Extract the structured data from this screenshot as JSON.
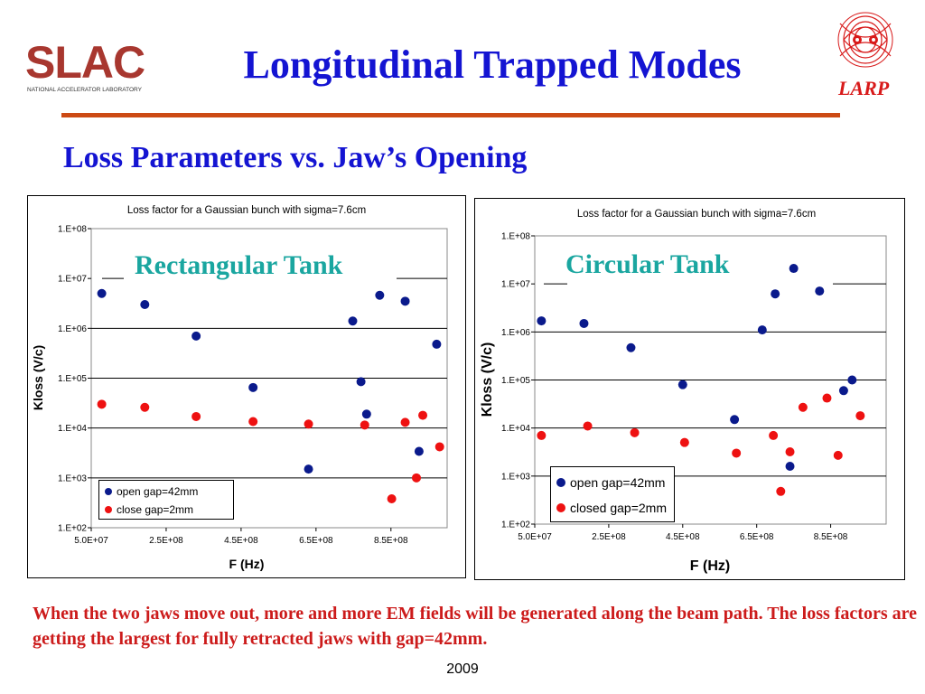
{
  "header": {
    "logo_text": "SLAC",
    "logo_caption": "NATIONAL ACCELERATOR LABORATORY",
    "title": "Longitudinal Trapped Modes",
    "larp_label": "LARP"
  },
  "subtitle": "Loss Parameters vs. Jaw’s Opening",
  "colors": {
    "title_blue": "#1414d2",
    "rule_orange": "#cc4a14",
    "label_teal": "#1aa6a0",
    "footer_red": "#cc1b1b",
    "series_open": "#0a1a8c",
    "series_closed": "#ee1111",
    "logo_red": "#a8372f"
  },
  "chart_data": [
    {
      "type": "scatter",
      "panel_label": "Rectangular Tank",
      "title": "Loss factor for a Gaussian bunch with sigma=7.6cm",
      "xlabel": "F (Hz)",
      "ylabel": "Kloss (V/c)",
      "y_scale": "log",
      "ylim": [
        100,
        100000000
      ],
      "xlim": [
        50000000,
        1000000000
      ],
      "xticks": [
        {
          "value": 50000000,
          "label": "5.0E+07"
        },
        {
          "value": 250000000,
          "label": "2.5E+08"
        },
        {
          "value": 450000000,
          "label": "4.5E+08"
        },
        {
          "value": 650000000,
          "label": "6.5E+08"
        },
        {
          "value": 850000000,
          "label": "8.5E+08"
        }
      ],
      "yticks": [
        {
          "value": 100,
          "label": "1.E+02"
        },
        {
          "value": 1000,
          "label": "1.E+03"
        },
        {
          "value": 10000,
          "label": "1.E+04"
        },
        {
          "value": 100000,
          "label": "1.E+05"
        },
        {
          "value": 1000000,
          "label": "1.E+06"
        },
        {
          "value": 10000000,
          "label": "1.E+07"
        },
        {
          "value": 100000000,
          "label": "1.E+08"
        }
      ],
      "grid": true,
      "legend_position": "bottom-left",
      "series": [
        {
          "name": "open gap=42mm",
          "color": "#0a1a8c",
          "points": [
            [
              78000000,
              5000000
            ],
            [
              193000000,
              3000000
            ],
            [
              330000000,
              700000
            ],
            [
              482000000,
              65000
            ],
            [
              630000000,
              1500
            ],
            [
              748000000,
              1400000
            ],
            [
              770000000,
              85000
            ],
            [
              785000000,
              19000
            ],
            [
              820000000,
              4600000
            ],
            [
              888000000,
              3500000
            ],
            [
              925000000,
              3400
            ],
            [
              972000000,
              480000
            ]
          ]
        },
        {
          "name": "close gap=2mm",
          "color": "#ee1111",
          "points": [
            [
              78000000,
              30000
            ],
            [
              193000000,
              26000
            ],
            [
              330000000,
              17000
            ],
            [
              482000000,
              13500
            ],
            [
              630000000,
              12000
            ],
            [
              780000000,
              11500
            ],
            [
              852000000,
              380
            ],
            [
              888000000,
              13000
            ],
            [
              918000000,
              1000
            ],
            [
              935000000,
              18000
            ],
            [
              980000000,
              4200
            ]
          ]
        }
      ]
    },
    {
      "type": "scatter",
      "panel_label": "Circular Tank",
      "title": "Loss factor for a Gaussian bunch with sigma=7.6cm",
      "xlabel": "F (Hz)",
      "ylabel": "Kloss (V/c)",
      "y_scale": "log",
      "ylim": [
        100,
        100000000
      ],
      "xlim": [
        50000000,
        1000000000
      ],
      "xticks": [
        {
          "value": 50000000,
          "label": "5.0E+07"
        },
        {
          "value": 250000000,
          "label": "2.5E+08"
        },
        {
          "value": 450000000,
          "label": "4.5E+08"
        },
        {
          "value": 650000000,
          "label": "6.5E+08"
        },
        {
          "value": 850000000,
          "label": "8.5E+08"
        }
      ],
      "yticks": [
        {
          "value": 100,
          "label": "1.E+02"
        },
        {
          "value": 1000,
          "label": "1.E+03"
        },
        {
          "value": 10000,
          "label": "1.E+04"
        },
        {
          "value": 100000,
          "label": "1.E+05"
        },
        {
          "value": 1000000,
          "label": "1.E+06"
        },
        {
          "value": 10000000,
          "label": "1.E+07"
        },
        {
          "value": 100000000,
          "label": "1.E+08"
        }
      ],
      "grid": true,
      "legend_position": "bottom-left",
      "series": [
        {
          "name": "open gap=42mm",
          "color": "#0a1a8c",
          "points": [
            [
              68000000,
              1700000
            ],
            [
              183000000,
              1500000
            ],
            [
              310000000,
              470000
            ],
            [
              450000000,
              80000
            ],
            [
              590000000,
              15000
            ],
            [
              665000000,
              1100000
            ],
            [
              700000000,
              6200000
            ],
            [
              740000000,
              1600
            ],
            [
              750000000,
              21000000
            ],
            [
              820000000,
              7100000
            ],
            [
              885000000,
              60000
            ],
            [
              908000000,
              100000
            ]
          ]
        },
        {
          "name": "closed gap=2mm",
          "color": "#ee1111",
          "points": [
            [
              68000000,
              7000
            ],
            [
              193000000,
              11000
            ],
            [
              320000000,
              8000
            ],
            [
              455000000,
              5000
            ],
            [
              595000000,
              3000
            ],
            [
              695000000,
              7000
            ],
            [
              715000000,
              480
            ],
            [
              740000000,
              3200
            ],
            [
              775000000,
              27000
            ],
            [
              840000000,
              42000
            ],
            [
              870000000,
              2700
            ],
            [
              930000000,
              18000
            ]
          ]
        }
      ]
    }
  ],
  "footer_text": "When the two jaws move out, more and more EM fields will be generated along the beam path. The loss factors are getting the largest for fully retracted jaws with gap=42mm.",
  "year": "2009"
}
